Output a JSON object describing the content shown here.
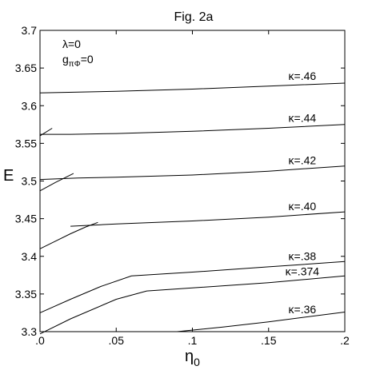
{
  "chart_data": {
    "type": "line",
    "title": "Fig. 2a",
    "xlabel": "η0",
    "ylabel": "E",
    "xlim": [
      0,
      0.2
    ],
    "ylim": [
      3.3,
      3.7
    ],
    "x_ticks": [
      ".0",
      ".05",
      ".1",
      ".15",
      ".2"
    ],
    "y_ticks": [
      "3.3",
      "3.35",
      "3.4",
      "3.45",
      "3.5",
      "3.55",
      "3.6",
      "3.65",
      "3.7"
    ],
    "annotations": [
      "λ=0",
      "g",
      "πΦ",
      "=0"
    ],
    "grid": false,
    "series": [
      {
        "name": "κ=.46",
        "x": [
          0.0,
          0.05,
          0.1,
          0.15,
          0.2
        ],
        "y": [
          3.617,
          3.619,
          3.622,
          3.626,
          3.63
        ]
      },
      {
        "name": "κ=.44",
        "x": [
          0.0,
          0.02,
          0.05,
          0.1,
          0.15,
          0.2
        ],
        "y": [
          3.562,
          3.562,
          3.563,
          3.566,
          3.57,
          3.575
        ]
      },
      {
        "name": "κ=.42",
        "x": [
          0.0,
          0.025,
          0.05,
          0.1,
          0.15,
          0.2
        ],
        "y": [
          3.502,
          3.504,
          3.505,
          3.508,
          3.513,
          3.52
        ]
      },
      {
        "name": "κ=.40",
        "x": [
          0.02,
          0.04,
          0.05,
          0.1,
          0.15,
          0.2
        ],
        "y": [
          3.44,
          3.442,
          3.443,
          3.447,
          3.452,
          3.459
        ]
      },
      {
        "name": "κ=.38",
        "x": [
          0.0,
          0.02,
          0.04,
          0.06,
          0.1,
          0.15,
          0.2
        ],
        "y": [
          3.325,
          3.343,
          3.36,
          3.374,
          3.379,
          3.386,
          3.393
        ]
      },
      {
        "name": "κ=.374",
        "x": [
          0.0,
          0.02,
          0.05,
          0.07,
          0.1,
          0.15,
          0.2
        ],
        "y": [
          3.297,
          3.317,
          3.343,
          3.354,
          3.358,
          3.365,
          3.374
        ]
      },
      {
        "name": "κ=.36",
        "x": [
          0.09,
          0.12,
          0.15,
          0.2
        ],
        "y": [
          3.3,
          3.306,
          3.313,
          3.326
        ]
      }
    ],
    "extra_curves": [
      {
        "x": [
          0.0,
          0.008
        ],
        "y": [
          3.56,
          3.57
        ]
      },
      {
        "x": [
          0.0,
          0.01,
          0.022
        ],
        "y": [
          3.487,
          3.498,
          3.51
        ]
      },
      {
        "x": [
          0.0,
          0.01,
          0.02,
          0.03,
          0.038
        ],
        "y": [
          3.41,
          3.42,
          3.43,
          3.439,
          3.445
        ]
      }
    ]
  }
}
